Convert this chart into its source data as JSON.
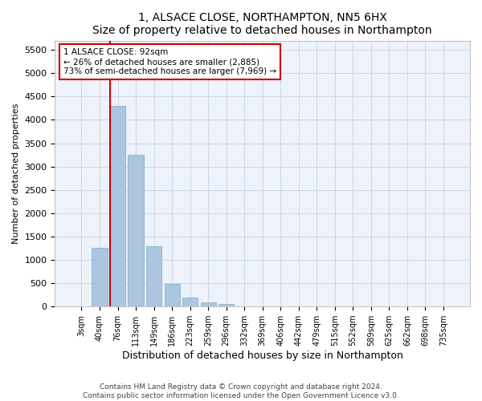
{
  "title": "1, ALSACE CLOSE, NORTHAMPTON, NN5 6HX",
  "subtitle": "Size of property relative to detached houses in Northampton",
  "xlabel": "Distribution of detached houses by size in Northampton",
  "ylabel": "Number of detached properties",
  "categories": [
    "3sqm",
    "40sqm",
    "76sqm",
    "113sqm",
    "149sqm",
    "186sqm",
    "223sqm",
    "259sqm",
    "296sqm",
    "332sqm",
    "369sqm",
    "406sqm",
    "442sqm",
    "479sqm",
    "515sqm",
    "552sqm",
    "589sqm",
    "625sqm",
    "662sqm",
    "698sqm",
    "735sqm"
  ],
  "values": [
    0,
    1250,
    4300,
    3250,
    1300,
    490,
    200,
    90,
    60,
    0,
    0,
    0,
    0,
    0,
    0,
    0,
    0,
    0,
    0,
    0,
    0
  ],
  "bar_color": "#adc6e0",
  "bar_edge_color": "#7aaac8",
  "property_line_index": 2,
  "property_line_color": "#cc0000",
  "annotation_text": "1 ALSACE CLOSE: 92sqm\n← 26% of detached houses are smaller (2,885)\n73% of semi-detached houses are larger (7,969) →",
  "annotation_box_color": "#cc0000",
  "ylim": [
    0,
    5700
  ],
  "yticks": [
    0,
    500,
    1000,
    1500,
    2000,
    2500,
    3000,
    3500,
    4000,
    4500,
    5000,
    5500
  ],
  "footer_line1": "Contains HM Land Registry data © Crown copyright and database right 2024.",
  "footer_line2": "Contains public sector information licensed under the Open Government Licence v3.0.",
  "bg_color": "#eef2fa",
  "grid_color": "#c0cce0"
}
